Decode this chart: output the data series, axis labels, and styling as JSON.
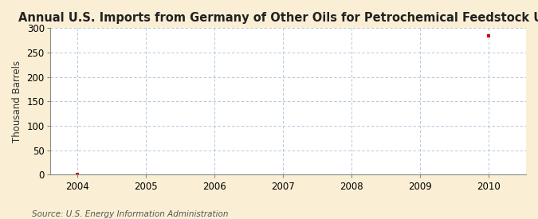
{
  "title": "Annual U.S. Imports from Germany of Other Oils for Petrochemical Feedstock Use",
  "ylabel": "Thousand Barrels",
  "source_text": "Source: U.S. Energy Information Administration",
  "outer_bg_color": "#faefd4",
  "plot_bg_color": "#ffffff",
  "x_data": [
    2004,
    2010
  ],
  "y_data": [
    0,
    284
  ],
  "point_color": "#cc0000",
  "xmin": 2003.6,
  "xmax": 2010.55,
  "ymin": 0,
  "ymax": 300,
  "yticks": [
    0,
    50,
    100,
    150,
    200,
    250,
    300
  ],
  "xticks": [
    2004,
    2005,
    2006,
    2007,
    2008,
    2009,
    2010
  ],
  "title_fontsize": 10.5,
  "axis_fontsize": 8.5,
  "tick_fontsize": 8.5,
  "source_fontsize": 7.5
}
